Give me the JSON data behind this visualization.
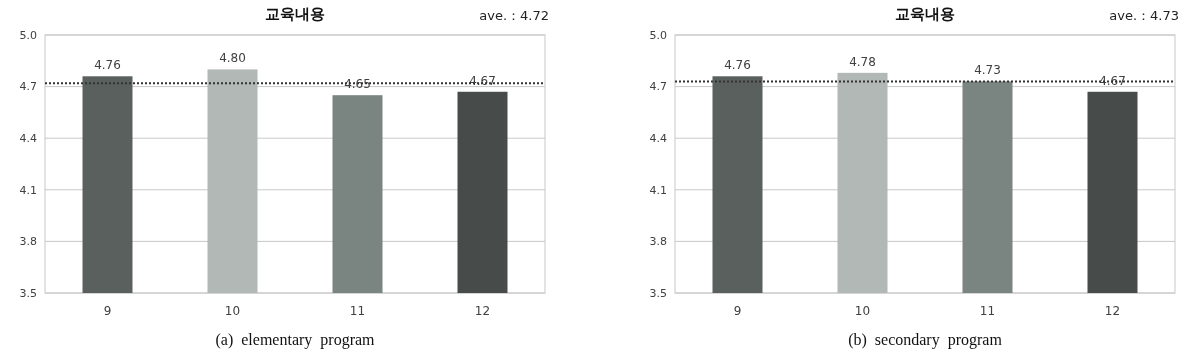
{
  "chart_data": [
    {
      "type": "bar",
      "title": "교육내용",
      "categories": [
        "9",
        "10",
        "11",
        "12"
      ],
      "values": [
        4.76,
        4.8,
        4.65,
        4.67
      ],
      "value_labels": [
        "4.76",
        "4.80",
        "4.65",
        "4.67"
      ],
      "colors": [
        "#5a605e",
        "#b2b8b5",
        "#7a8481",
        "#474c4b"
      ],
      "ylim": [
        3.5,
        5.0
      ],
      "yticks": [
        "3.5",
        {
          "value": 3.8,
          "label": "3.8"
        },
        {
          "value": 4.1,
          "label": "4.1"
        },
        {
          "value": 4.4,
          "label": "4.4"
        },
        {
          "value": 4.7,
          "label": "4.7"
        },
        {
          "value": 5.0,
          "label": "5.0"
        }
      ],
      "grid": "y",
      "ref_lines": [
        {
          "axis": "y",
          "value": 4.72,
          "label": "ave.：4.72",
          "line_style": "dotted",
          "color": "#333333"
        }
      ],
      "annotations": [
        "(a)  elementary  program"
      ]
    },
    {
      "type": "bar",
      "title": "교육내용",
      "categories": [
        "9",
        "10",
        "11",
        "12"
      ],
      "values": [
        4.76,
        4.78,
        4.73,
        4.67
      ],
      "colors": [
        "#5a605e",
        "#b2b8b5",
        "#7a8481",
        "#474c4b"
      ],
      "ylim": [
        3.5,
        5.0
      ],
      "yticks": [
        {
          "value": 3.5,
          "label": "3.5"
        },
        {
          "value": 3.8,
          "label": "3.8"
        },
        {
          "value": 4.1,
          "label": "4.1"
        },
        {
          "value": 4.4,
          "label": "4.4"
        },
        {
          "value": 4.7,
          "label": "4.7"
        },
        {
          "value": 5.0,
          "label": "5.0"
        }
      ],
      "grid": "y",
      "data_labels": true,
      "ref_lines": [
        {
          "axis": "y",
          "value": 4.73,
          "label": "ave.：4.73",
          "line_style": "dotted",
          "color": "#333333"
        }
      ],
      "annotations": [
        "(b)  secondary  program"
      ]
    }
  ]
}
